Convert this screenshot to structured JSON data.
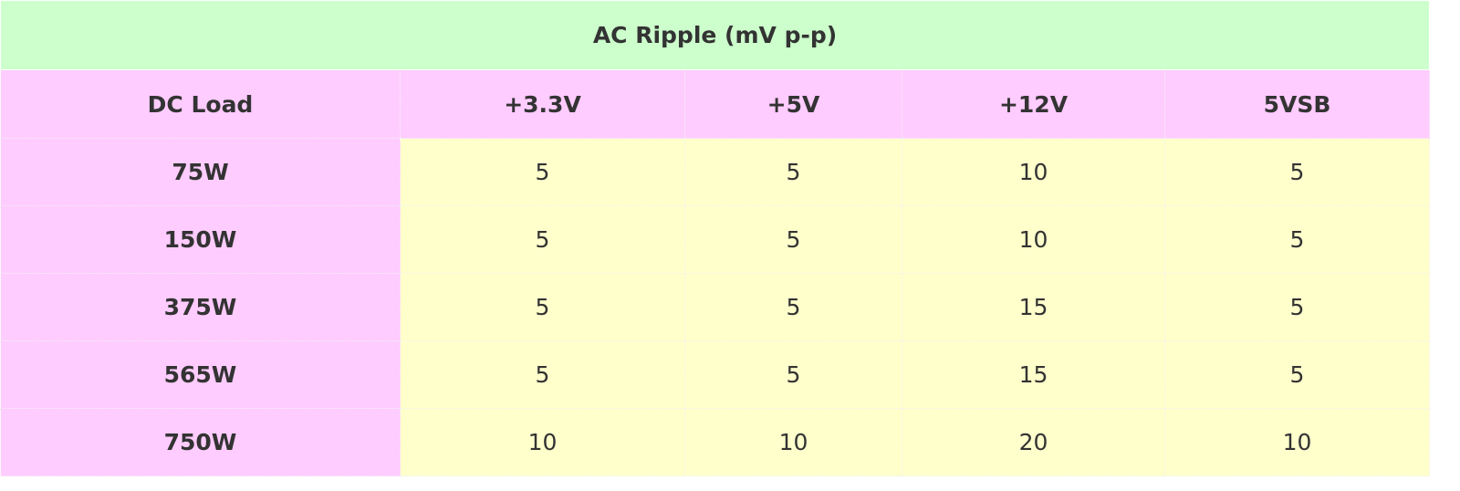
{
  "table": {
    "title": "AC Ripple (mV p-p)",
    "header": [
      "DC Load",
      "+3.3V",
      "+5V",
      "+12V",
      "5VSB"
    ],
    "rows": [
      [
        "75W",
        5,
        5,
        10,
        5
      ],
      [
        "150W",
        5,
        5,
        10,
        5
      ],
      [
        "375W",
        5,
        5,
        15,
        5
      ],
      [
        "565W",
        5,
        5,
        15,
        5
      ],
      [
        "750W",
        10,
        10,
        20,
        10
      ]
    ]
  }
}
